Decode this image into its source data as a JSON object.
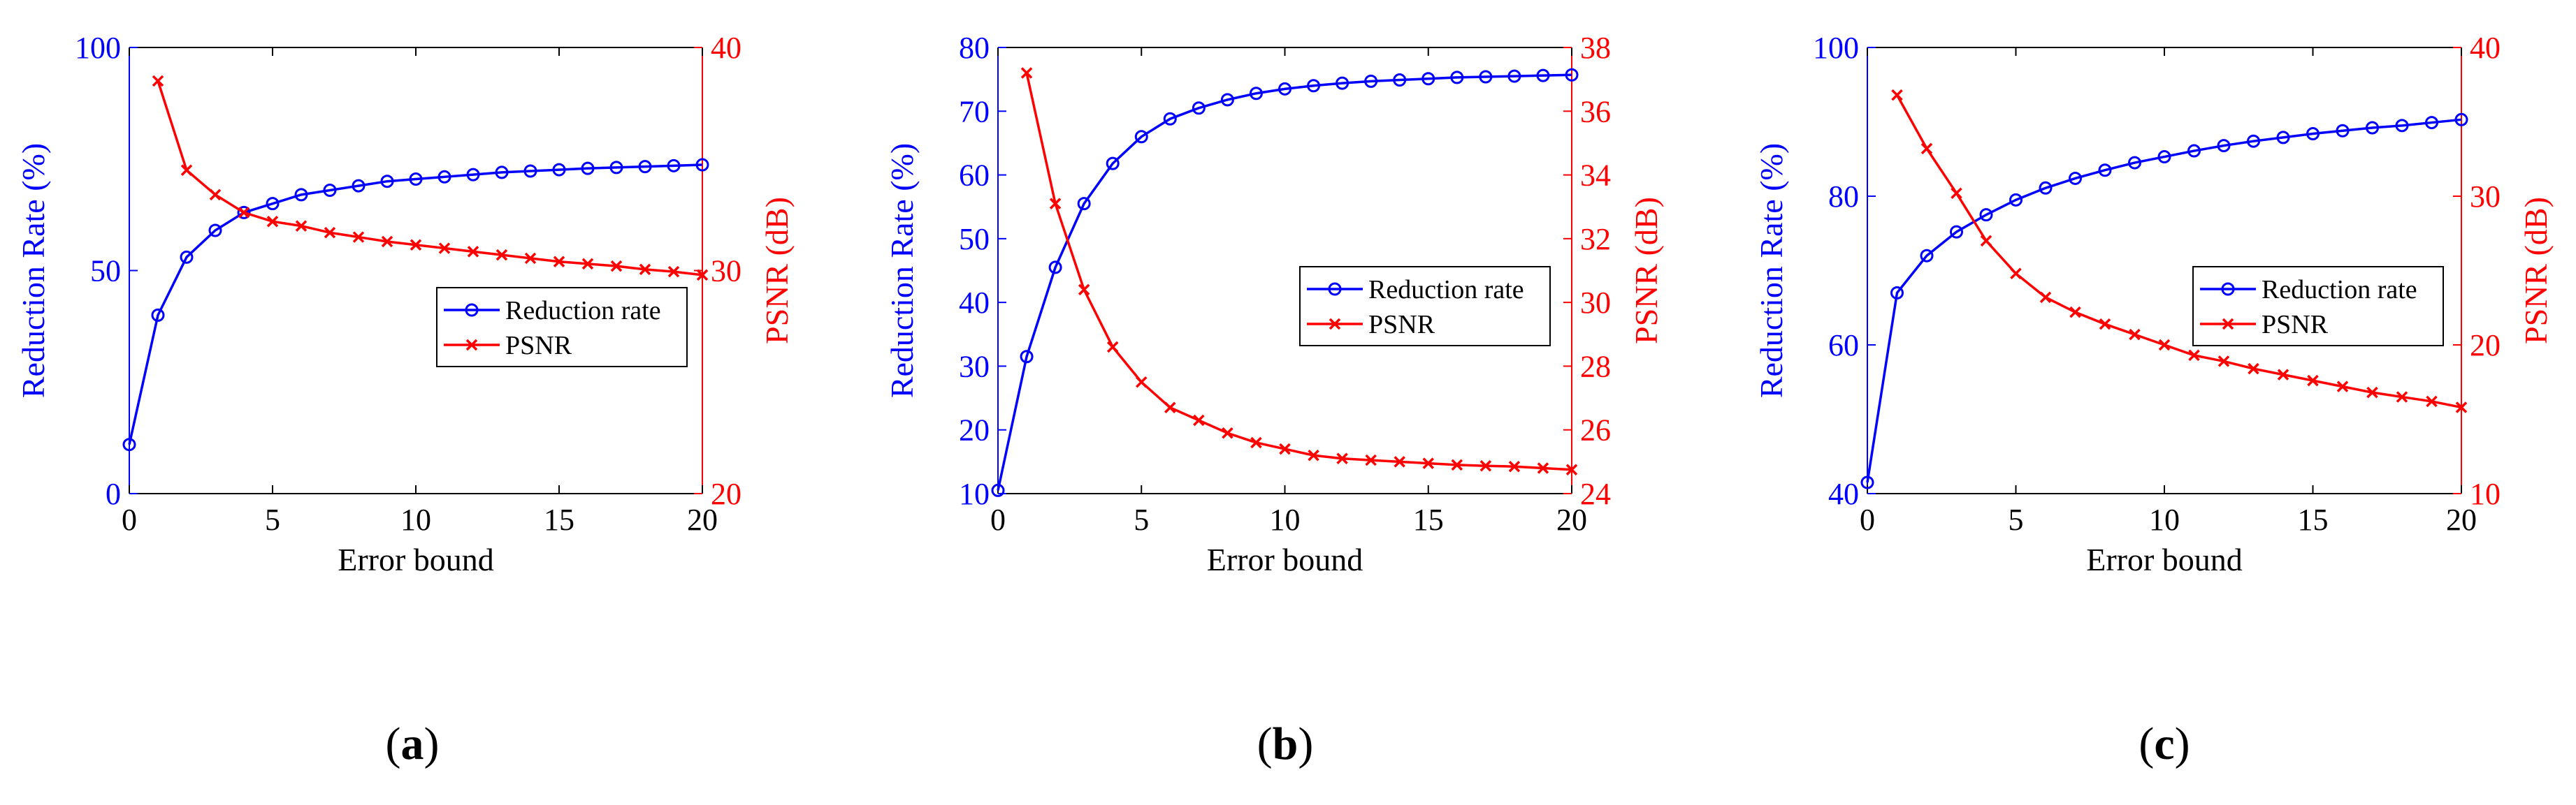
{
  "colors": {
    "left_axis": "#0000ff",
    "right_axis": "#ff0000",
    "frame": "#000000"
  },
  "chart_data": [
    {
      "panel": "a",
      "type": "line",
      "xlabel": "Error bound",
      "ylabel_left": "Reduction Rate (%)",
      "ylabel_right": "PSNR (dB)",
      "xlim": [
        0,
        20
      ],
      "ylim_left": [
        0,
        100
      ],
      "ylim_right": [
        20,
        40
      ],
      "xticks": [
        0,
        5,
        10,
        15,
        20
      ],
      "yticks_left": [
        0,
        50,
        100
      ],
      "yticks_right": [
        20,
        30,
        40
      ],
      "legend": [
        "Reduction rate",
        "PSNR"
      ],
      "series": [
        {
          "name": "Reduction rate",
          "axis": "left",
          "marker": "o",
          "x": [
            0,
            1,
            2,
            3,
            4,
            5,
            6,
            7,
            8,
            9,
            10,
            11,
            12,
            13,
            14,
            15,
            16,
            17,
            18,
            19,
            20
          ],
          "values": [
            11,
            40,
            53,
            59,
            63,
            65,
            67,
            68,
            69,
            70,
            70.5,
            71,
            71.5,
            72,
            72.3,
            72.6,
            72.9,
            73.1,
            73.3,
            73.5,
            73.7
          ]
        },
        {
          "name": "PSNR",
          "axis": "right",
          "marker": "x",
          "x": [
            1,
            2,
            3,
            4,
            5,
            6,
            7,
            8,
            9,
            10,
            11,
            12,
            13,
            14,
            15,
            16,
            17,
            18,
            19,
            20
          ],
          "values": [
            38.5,
            34.5,
            33.4,
            32.6,
            32.2,
            32.0,
            31.7,
            31.5,
            31.3,
            31.15,
            31.0,
            30.85,
            30.7,
            30.55,
            30.4,
            30.3,
            30.2,
            30.05,
            29.95,
            29.8
          ]
        }
      ]
    },
    {
      "panel": "b",
      "type": "line",
      "xlabel": "Error bound",
      "ylabel_left": "Reduction Rate (%)",
      "ylabel_right": "PSNR (dB)",
      "xlim": [
        0,
        20
      ],
      "ylim_left": [
        10,
        80
      ],
      "ylim_right": [
        24,
        38
      ],
      "xticks": [
        0,
        5,
        10,
        15,
        20
      ],
      "yticks_left": [
        10,
        20,
        30,
        40,
        50,
        60,
        70,
        80
      ],
      "yticks_right": [
        24,
        26,
        28,
        30,
        32,
        34,
        36,
        38
      ],
      "legend": [
        "Reduction rate",
        "PSNR"
      ],
      "series": [
        {
          "name": "Reduction rate",
          "axis": "left",
          "marker": "o",
          "x": [
            0,
            1,
            2,
            3,
            4,
            5,
            6,
            7,
            8,
            9,
            10,
            11,
            12,
            13,
            14,
            15,
            16,
            17,
            18,
            19,
            20
          ],
          "values": [
            10.5,
            31.5,
            45.5,
            55.5,
            61.8,
            66,
            68.8,
            70.5,
            71.8,
            72.8,
            73.5,
            74,
            74.4,
            74.7,
            74.9,
            75.1,
            75.3,
            75.4,
            75.5,
            75.6,
            75.7
          ]
        },
        {
          "name": "PSNR",
          "axis": "right",
          "marker": "x",
          "x": [
            1,
            2,
            3,
            4,
            5,
            6,
            7,
            8,
            9,
            10,
            11,
            12,
            13,
            14,
            15,
            16,
            17,
            18,
            19,
            20
          ],
          "values": [
            37.2,
            33.1,
            30.4,
            28.6,
            27.5,
            26.7,
            26.3,
            25.9,
            25.6,
            25.4,
            25.2,
            25.1,
            25.05,
            25.0,
            24.95,
            24.9,
            24.87,
            24.85,
            24.8,
            24.75
          ]
        }
      ]
    },
    {
      "panel": "c",
      "type": "line",
      "xlabel": "Error bound",
      "ylabel_left": "Reduction Rate (%)",
      "ylabel_right": "PSNR (dB)",
      "xlim": [
        0,
        20
      ],
      "ylim_left": [
        40,
        100
      ],
      "ylim_right": [
        10,
        40
      ],
      "xticks": [
        0,
        5,
        10,
        15,
        20
      ],
      "yticks_left": [
        40,
        60,
        80,
        100
      ],
      "yticks_right": [
        10,
        20,
        30,
        40
      ],
      "legend": [
        "Reduction rate",
        "PSNR"
      ],
      "series": [
        {
          "name": "Reduction rate",
          "axis": "left",
          "marker": "o",
          "x": [
            0,
            1,
            2,
            3,
            4,
            5,
            6,
            7,
            8,
            9,
            10,
            11,
            12,
            13,
            14,
            15,
            16,
            17,
            18,
            19,
            20
          ],
          "values": [
            41.5,
            67,
            72,
            75.2,
            77.5,
            79.5,
            81.1,
            82.4,
            83.5,
            84.5,
            85.3,
            86.1,
            86.8,
            87.4,
            87.9,
            88.4,
            88.8,
            89.2,
            89.5,
            89.9,
            90.3
          ]
        },
        {
          "name": "PSNR",
          "axis": "right",
          "marker": "x",
          "x": [
            1,
            2,
            3,
            4,
            5,
            6,
            7,
            8,
            9,
            10,
            11,
            12,
            13,
            14,
            15,
            16,
            17,
            18,
            19,
            20
          ],
          "values": [
            36.8,
            33.2,
            30.2,
            27.0,
            24.8,
            23.2,
            22.2,
            21.4,
            20.7,
            20.0,
            19.3,
            18.9,
            18.4,
            18.0,
            17.6,
            17.2,
            16.8,
            16.5,
            16.2,
            15.8
          ]
        }
      ]
    }
  ]
}
